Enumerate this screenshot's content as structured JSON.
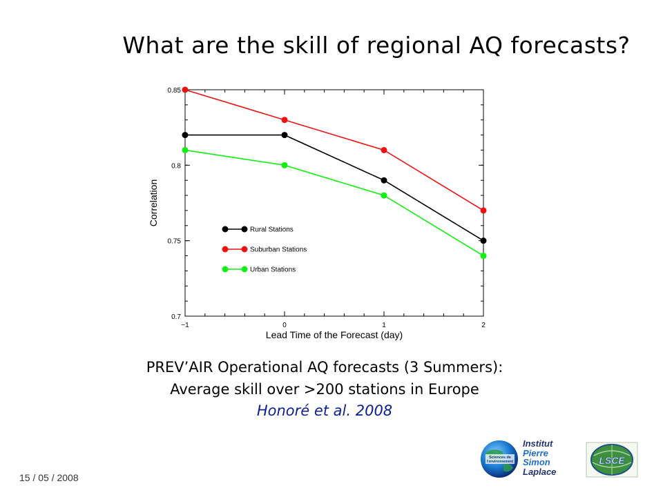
{
  "slide": {
    "title": "What are the skill of regional AQ forecasts?",
    "caption_line1": "PREV’AIR Operational AQ forecasts (3 Summers):",
    "caption_line2": "Average skill over >200 stations in Europe",
    "reference": "Honoré et al. 2008",
    "date": "15 / 05 / 2008"
  },
  "logos": {
    "ipsl_line1": "Institut",
    "ipsl_line2": "Pierre",
    "ipsl_line3": "Simon",
    "ipsl_line4": "Laplace",
    "globe_line1": "Sciences de",
    "globe_line2": "l'environnement",
    "lsce": "LSCE"
  },
  "chart_data": {
    "type": "line",
    "xlabel": "Lead Time of the Forecast (day)",
    "ylabel": "Correlation",
    "x": [
      -1,
      0,
      1,
      2
    ],
    "x_tick_labels": [
      "−1",
      "0",
      "1",
      "2"
    ],
    "y_ticks": [
      0.7,
      0.75,
      0.8,
      0.85
    ],
    "y_tick_labels": [
      "0.7",
      "0.75",
      "0.8",
      "0.85"
    ],
    "xlim": [
      -1,
      2
    ],
    "ylim": [
      0.7,
      0.85
    ],
    "grid": false,
    "legend_position": "inside-left",
    "series": [
      {
        "name": "Rural Stations",
        "color": "#000000",
        "values": [
          0.82,
          0.82,
          0.79,
          0.75
        ]
      },
      {
        "name": "Suburban Stations",
        "color": "#ee1111",
        "values": [
          0.85,
          0.83,
          0.81,
          0.77
        ]
      },
      {
        "name": "Urban Stations",
        "color": "#11ee11",
        "values": [
          0.81,
          0.8,
          0.78,
          0.74
        ]
      }
    ]
  }
}
